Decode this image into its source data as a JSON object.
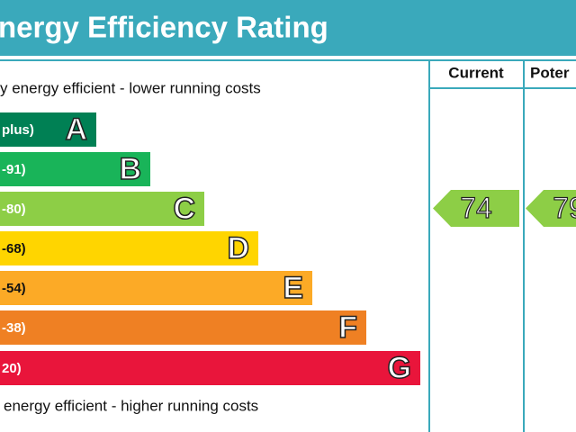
{
  "header": {
    "title": "nergy Efficiency Rating"
  },
  "top_note": "y energy efficient - lower running costs",
  "bottom_note": "energy efficient - higher running costs",
  "bands": [
    {
      "label": "plus)",
      "letter": "A",
      "color": "#008054"
    },
    {
      "label": "-91)",
      "letter": "B",
      "color": "#19b459"
    },
    {
      "label": "-80)",
      "letter": "C",
      "color": "#8dce46"
    },
    {
      "label": "-68)",
      "letter": "D",
      "color": "#ffd500"
    },
    {
      "label": "-54)",
      "letter": "E",
      "color": "#fcaa26"
    },
    {
      "label": "-38)",
      "letter": "F",
      "color": "#ef8023"
    },
    {
      "label": "20)",
      "letter": "G",
      "color": "#e9153b"
    }
  ],
  "columns": [
    "Current",
    "Poter"
  ],
  "ratings": [
    {
      "value": "74",
      "color": "#8dce46"
    },
    {
      "value": "79",
      "color": "#8dce46"
    }
  ]
}
